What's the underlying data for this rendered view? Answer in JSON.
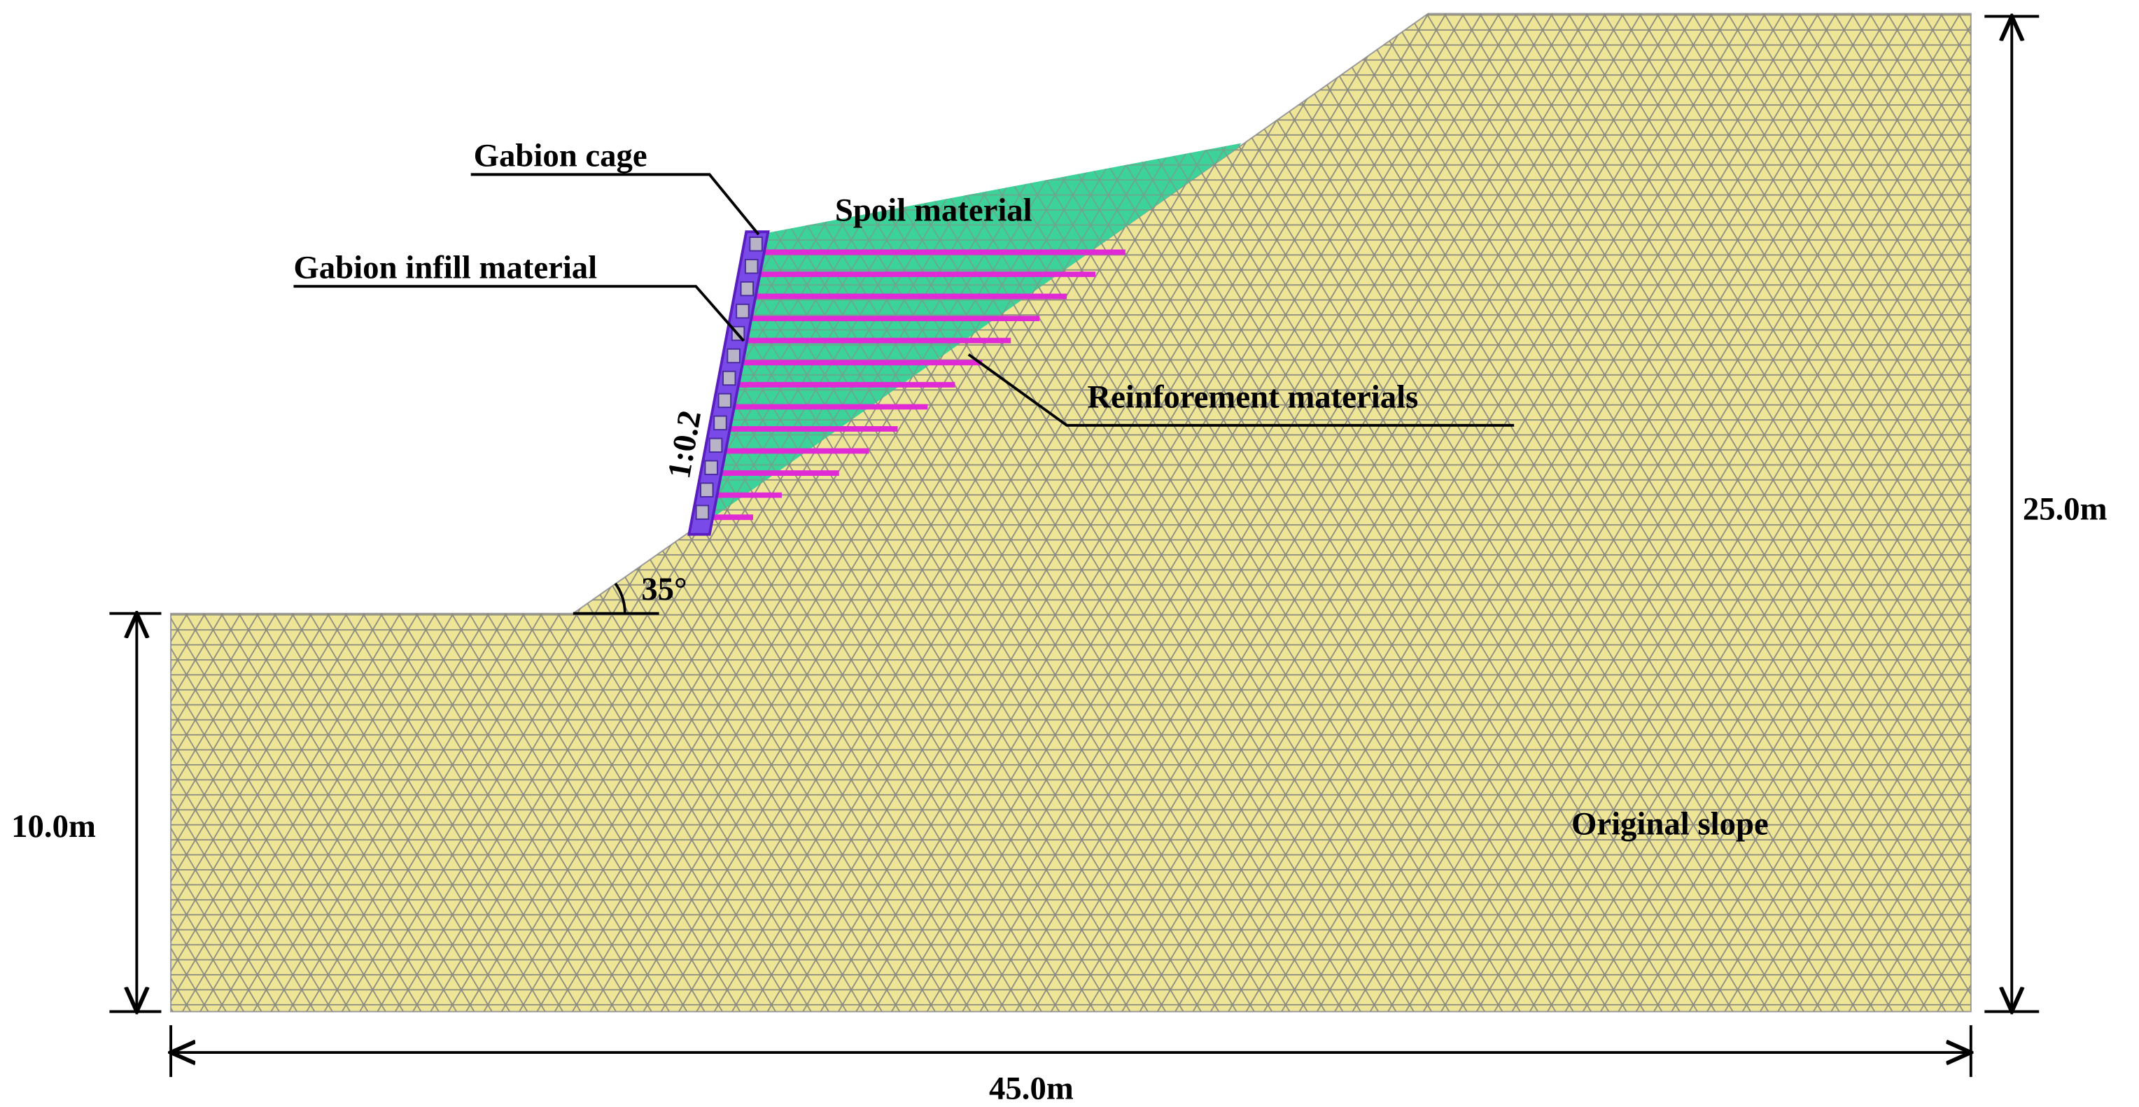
{
  "labels": {
    "gabion_cage": "Gabion cage",
    "spoil": "Spoil material",
    "infill": "Gabion infill material",
    "reinforcement": "Reinforement materials",
    "ratio": "1:0.2",
    "angle": "35°",
    "original": "Original slope"
  },
  "dimensions": {
    "left_height": "10.0m",
    "right_height": "25.0m",
    "width": "45.0m"
  }
}
